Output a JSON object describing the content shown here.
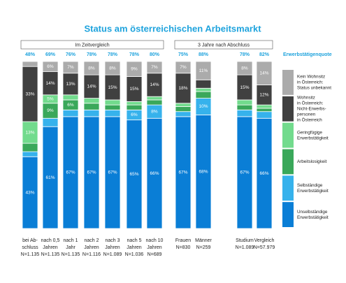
{
  "chart_data": {
    "type": "stacked-bar",
    "title": "Status am österreichischen Arbeitsmarkt",
    "groups": [
      "Im Zeitvergleich",
      "3 Jahre nach Abschluss"
    ],
    "categories": [
      [
        "bei Ab-",
        "schluss"
      ],
      [
        "nach 0,5",
        "Jahren"
      ],
      [
        "nach 1",
        "Jahr"
      ],
      [
        "nach 2",
        "Jahren"
      ],
      [
        "nach 3",
        "Jahren"
      ],
      [
        "nach 5",
        "Jahren"
      ],
      [
        "nach 10",
        "Jahren"
      ],
      [
        "Frauen"
      ],
      [
        "Männer"
      ],
      [
        "Studium"
      ],
      [
        "Vergleich"
      ]
    ],
    "sample_sizes": [
      "N=1.135",
      "N=1.135",
      "N=1.135",
      "N=1.116",
      "N=1.089",
      "N=1.036",
      "N=689",
      "N=830",
      "N=259",
      "N=1.089",
      "N=57.979"
    ],
    "rate_title": "Erwerbstätigenquote",
    "rates": [
      48,
      69,
      76,
      78,
      78,
      78,
      80,
      75,
      88,
      78,
      82
    ],
    "rate_labels": [
      "48%",
      "69%",
      "76%",
      "78%",
      "78%",
      "78%",
      "80%",
      "75%",
      "88%",
      "78%",
      "82%"
    ],
    "ylim": [
      0,
      100
    ],
    "series": [
      {
        "name": [
          "Unselbständige",
          "Erwerbstätigkeit"
        ],
        "color": "#0a7ed6",
        "values": [
          43,
          61,
          67,
          67,
          67,
          65,
          66,
          67,
          68,
          67,
          66
        ],
        "value_labels": [
          "43%",
          "61%",
          "67%",
          "67%",
          "67%",
          "65%",
          "66%",
          "67%",
          "68%",
          "67%",
          "66%"
        ]
      },
      {
        "name": [
          "Selbständige",
          "Erwerbstätigkeit"
        ],
        "color": "#36b2ec",
        "values": [
          3,
          5,
          4,
          4,
          4,
          6,
          8,
          3,
          10,
          4,
          4
        ],
        "value_labels": [
          null,
          null,
          null,
          null,
          null,
          "6%",
          "8%",
          null,
          "10%",
          null,
          null
        ]
      },
      {
        "name": [
          "Arbeitslosigkeit"
        ],
        "color": "#3aa85a",
        "values": [
          5,
          9,
          6,
          4,
          3,
          3,
          3,
          3,
          4,
          3,
          2
        ],
        "value_labels": [
          null,
          "9%",
          "6%",
          null,
          null,
          null,
          null,
          null,
          null,
          null,
          null
        ]
      },
      {
        "name": [
          "Geringfügige",
          "Erwerbstätigkeit"
        ],
        "color": "#72db8d",
        "values": [
          13,
          5,
          3,
          3,
          3,
          2,
          2,
          2,
          2,
          3,
          2
        ],
        "value_labels": [
          "13%",
          "5%",
          null,
          null,
          null,
          null,
          null,
          null,
          null,
          null,
          null
        ]
      },
      {
        "name": [
          "Wohnsitz",
          "in Österreich:",
          "Nicht-Erwerbs-",
          "personen",
          "in Österreich"
        ],
        "color": "#404040",
        "values": [
          33,
          14,
          13,
          14,
          15,
          15,
          14,
          18,
          5,
          15,
          12
        ],
        "value_labels": [
          "33%",
          "14%",
          "13%",
          "14%",
          "15%",
          "15%",
          "14%",
          "18%",
          null,
          "15%",
          "12%"
        ]
      },
      {
        "name": [
          "Kein Wohnsitz",
          "in Österreich:",
          "Status unbekannt"
        ],
        "color": "#ababab",
        "values": [
          3,
          6,
          7,
          8,
          8,
          9,
          7,
          7,
          11,
          8,
          14
        ],
        "value_labels": [
          null,
          "6%",
          "7%",
          "8%",
          "8%",
          "9%",
          "7%",
          "7%",
          "11%",
          "8%",
          "14%"
        ]
      }
    ]
  }
}
